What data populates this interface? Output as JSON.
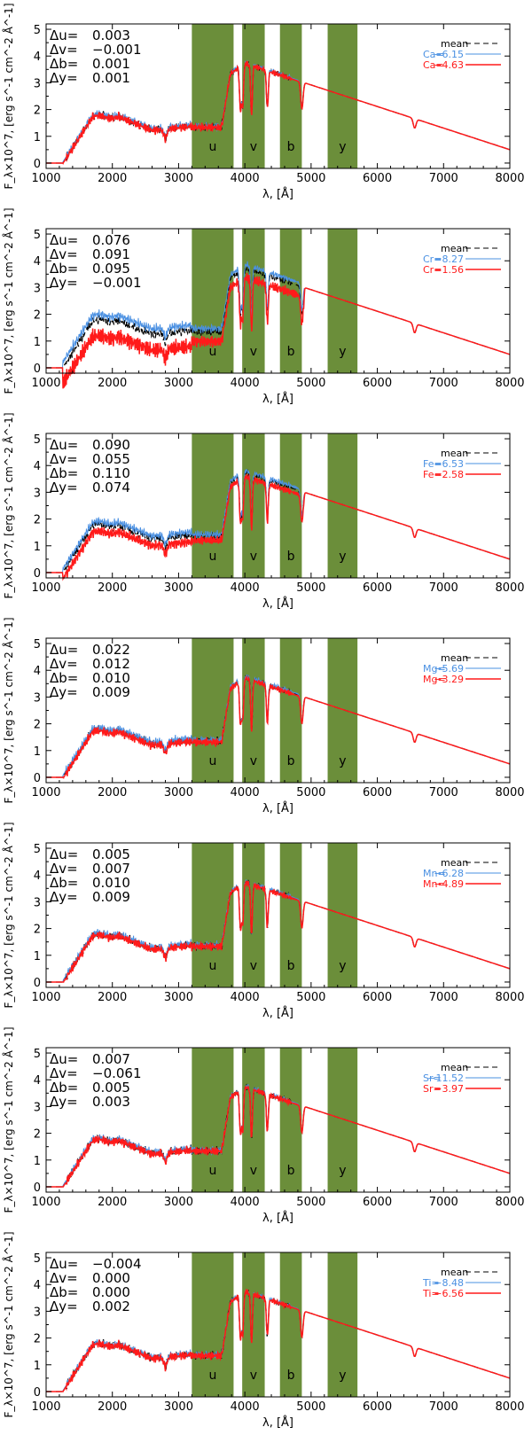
{
  "colors": {
    "band_fill": "#6b8e3a",
    "mean_line": "#000000",
    "low_line": "#4a90e2",
    "high_line": "#ff1a1a",
    "axis": "#000000"
  },
  "chart_data": [
    {
      "type": "line",
      "element": "Ca",
      "xlabel": "λ, [Å]",
      "ylabel": "F_λ×10^7, [erg s^-1 cm^-2 Å^-1]",
      "xlim": [
        1000,
        8000
      ],
      "ylim": [
        -0.2,
        5.2
      ],
      "x_ticks": [
        "1000",
        "2000",
        "3000",
        "4000",
        "5000",
        "6000",
        "7000",
        "8000"
      ],
      "y_ticks": [
        "0",
        "1",
        "2",
        "3",
        "4",
        "5"
      ],
      "bands": [
        {
          "label": "u",
          "from": 3200,
          "to": 3830
        },
        {
          "label": "v",
          "from": 3960,
          "to": 4300
        },
        {
          "label": "b",
          "from": 4530,
          "to": 4860
        },
        {
          "label": "y",
          "from": 5250,
          "to": 5700
        }
      ],
      "delta_labels": [
        "Δu=",
        "Δv=",
        "Δb=",
        "Δy="
      ],
      "delta_values": [
        "0.003",
        "−0.001",
        "0.001",
        "0.001"
      ],
      "legend": [
        {
          "name": "mean",
          "value": ""
        },
        {
          "name": "Ca=",
          "value": "−6.15"
        },
        {
          "name": "Ca=",
          "value": "−4.63"
        }
      ],
      "series": [
        {
          "name": "mean",
          "deviation": 0
        },
        {
          "name": "Ca= −6.15",
          "deviation": 0.03
        },
        {
          "name": "Ca= −4.63",
          "deviation": -0.03
        }
      ]
    },
    {
      "type": "line",
      "element": "Cr",
      "xlabel": "λ, [Å]",
      "ylabel": "F_λ×10^7, [erg s^-1 cm^-2 Å^-1]",
      "xlim": [
        1000,
        8000
      ],
      "ylim": [
        -0.2,
        5.2
      ],
      "x_ticks": [
        "1000",
        "2000",
        "3000",
        "4000",
        "5000",
        "6000",
        "7000",
        "8000"
      ],
      "y_ticks": [
        "0",
        "1",
        "2",
        "3",
        "4",
        "5"
      ],
      "bands": [
        {
          "label": "u",
          "from": 3200,
          "to": 3830
        },
        {
          "label": "v",
          "from": 3960,
          "to": 4300
        },
        {
          "label": "b",
          "from": 4530,
          "to": 4860
        },
        {
          "label": "y",
          "from": 5250,
          "to": 5700
        }
      ],
      "delta_labels": [
        "Δu=",
        "Δv=",
        "Δb=",
        "Δy="
      ],
      "delta_values": [
        "0.076",
        "0.091",
        "0.095",
        "−0.001"
      ],
      "legend": [
        {
          "name": "mean",
          "value": ""
        },
        {
          "name": "Cr=",
          "value": "−8.27"
        },
        {
          "name": "Cr=",
          "value": "−1.56"
        }
      ],
      "series": [
        {
          "name": "mean",
          "deviation": 0
        },
        {
          "name": "Cr= −8.27",
          "deviation": 0.2
        },
        {
          "name": "Cr= −1.56",
          "deviation": -0.6
        }
      ]
    },
    {
      "type": "line",
      "element": "Fe",
      "xlabel": "λ, [Å]",
      "ylabel": "F_λ×10^7, [erg s^-1 cm^-2 Å^-1]",
      "xlim": [
        1000,
        8000
      ],
      "ylim": [
        -0.2,
        5.2
      ],
      "x_ticks": [
        "1000",
        "2000",
        "3000",
        "4000",
        "5000",
        "6000",
        "7000",
        "8000"
      ],
      "y_ticks": [
        "0",
        "1",
        "2",
        "3",
        "4",
        "5"
      ],
      "bands": [
        {
          "label": "u",
          "from": 3200,
          "to": 3830
        },
        {
          "label": "v",
          "from": 3960,
          "to": 4300
        },
        {
          "label": "b",
          "from": 4530,
          "to": 4860
        },
        {
          "label": "y",
          "from": 5250,
          "to": 5700
        }
      ],
      "delta_labels": [
        "Δu=",
        "Δv=",
        "Δb=",
        "Δy="
      ],
      "delta_values": [
        "0.090",
        "0.055",
        "0.110",
        "0.074"
      ],
      "legend": [
        {
          "name": "mean",
          "value": ""
        },
        {
          "name": "Fe=",
          "value": "−6.53"
        },
        {
          "name": "Fe=",
          "value": "−2.58"
        }
      ],
      "series": [
        {
          "name": "mean",
          "deviation": 0
        },
        {
          "name": "Fe= −6.53",
          "deviation": 0.12
        },
        {
          "name": "Fe= −2.58",
          "deviation": -0.25
        }
      ]
    },
    {
      "type": "line",
      "element": "Mg",
      "xlabel": "λ, [Å]",
      "ylabel": "F_λ×10^7, [erg s^-1 cm^-2 Å^-1]",
      "xlim": [
        1000,
        8000
      ],
      "ylim": [
        -0.2,
        5.2
      ],
      "x_ticks": [
        "1000",
        "2000",
        "3000",
        "4000",
        "5000",
        "6000",
        "7000",
        "8000"
      ],
      "y_ticks": [
        "0",
        "1",
        "2",
        "3",
        "4",
        "5"
      ],
      "bands": [
        {
          "label": "u",
          "from": 3200,
          "to": 3830
        },
        {
          "label": "v",
          "from": 3960,
          "to": 4300
        },
        {
          "label": "b",
          "from": 4530,
          "to": 4860
        },
        {
          "label": "y",
          "from": 5250,
          "to": 5700
        }
      ],
      "delta_labels": [
        "Δu=",
        "Δv=",
        "Δb=",
        "Δy="
      ],
      "delta_values": [
        "0.022",
        "0.012",
        "0.010",
        "0.009"
      ],
      "legend": [
        {
          "name": "mean",
          "value": ""
        },
        {
          "name": "Mg=",
          "value": "−5.69"
        },
        {
          "name": "Mg=",
          "value": "−3.29"
        }
      ],
      "series": [
        {
          "name": "mean",
          "deviation": 0
        },
        {
          "name": "Mg= −5.69",
          "deviation": 0.06
        },
        {
          "name": "Mg= −3.29",
          "deviation": -0.06
        }
      ]
    },
    {
      "type": "line",
      "element": "Mn",
      "xlabel": "λ, [Å]",
      "ylabel": "F_λ×10^7, [erg s^-1 cm^-2 Å^-1]",
      "xlim": [
        1000,
        8000
      ],
      "ylim": [
        -0.2,
        5.2
      ],
      "x_ticks": [
        "1000",
        "2000",
        "3000",
        "4000",
        "5000",
        "6000",
        "7000",
        "8000"
      ],
      "y_ticks": [
        "0",
        "1",
        "2",
        "3",
        "4",
        "5"
      ],
      "bands": [
        {
          "label": "u",
          "from": 3200,
          "to": 3830
        },
        {
          "label": "v",
          "from": 3960,
          "to": 4300
        },
        {
          "label": "b",
          "from": 4530,
          "to": 4860
        },
        {
          "label": "y",
          "from": 5250,
          "to": 5700
        }
      ],
      "delta_labels": [
        "Δu=",
        "Δv=",
        "Δb=",
        "Δy="
      ],
      "delta_values": [
        "0.005",
        "0.007",
        "0.010",
        "0.009"
      ],
      "legend": [
        {
          "name": "mean",
          "value": ""
        },
        {
          "name": "Mn=",
          "value": "−6.28"
        },
        {
          "name": "Mn=",
          "value": "−4.89"
        }
      ],
      "series": [
        {
          "name": "mean",
          "deviation": 0
        },
        {
          "name": "Mn= −6.28",
          "deviation": 0.04
        },
        {
          "name": "Mn= −4.89",
          "deviation": -0.04
        }
      ]
    },
    {
      "type": "line",
      "element": "Sr",
      "xlabel": "λ, [Å]",
      "ylabel": "F_λ×10^7, [erg s^-1 cm^-2 Å^-1]",
      "xlim": [
        1000,
        8000
      ],
      "ylim": [
        -0.2,
        5.2
      ],
      "x_ticks": [
        "1000",
        "2000",
        "3000",
        "4000",
        "5000",
        "6000",
        "7000",
        "8000"
      ],
      "y_ticks": [
        "0",
        "1",
        "2",
        "3",
        "4",
        "5"
      ],
      "bands": [
        {
          "label": "u",
          "from": 3200,
          "to": 3830
        },
        {
          "label": "v",
          "from": 3960,
          "to": 4300
        },
        {
          "label": "b",
          "from": 4530,
          "to": 4860
        },
        {
          "label": "y",
          "from": 5250,
          "to": 5700
        }
      ],
      "delta_labels": [
        "Δu=",
        "Δv=",
        "Δb=",
        "Δy="
      ],
      "delta_values": [
        "0.007",
        "−0.061",
        "0.005",
        "0.003"
      ],
      "legend": [
        {
          "name": "mean",
          "value": ""
        },
        {
          "name": "Sr=",
          "value": "−11.52"
        },
        {
          "name": "Sr=",
          "value": "−3.97"
        }
      ],
      "series": [
        {
          "name": "mean",
          "deviation": 0
        },
        {
          "name": "Sr= −11.52",
          "deviation": 0.03
        },
        {
          "name": "Sr= −3.97",
          "deviation": -0.03
        }
      ]
    },
    {
      "type": "line",
      "element": "Ti",
      "xlabel": "λ, [Å]",
      "ylabel": "F_λ×10^7, [erg s^-1 cm^-2 Å^-1]",
      "xlim": [
        1000,
        8000
      ],
      "ylim": [
        -0.2,
        5.2
      ],
      "x_ticks": [
        "1000",
        "2000",
        "3000",
        "4000",
        "5000",
        "6000",
        "7000",
        "8000"
      ],
      "y_ticks": [
        "0",
        "1",
        "2",
        "3",
        "4",
        "5"
      ],
      "bands": [
        {
          "label": "u",
          "from": 3200,
          "to": 3830
        },
        {
          "label": "v",
          "from": 3960,
          "to": 4300
        },
        {
          "label": "b",
          "from": 4530,
          "to": 4860
        },
        {
          "label": "y",
          "from": 5250,
          "to": 5700
        }
      ],
      "delta_labels": [
        "Δu=",
        "Δv=",
        "Δb=",
        "Δy="
      ],
      "delta_values": [
        "−0.004",
        "0.000",
        "0.000",
        "0.002"
      ],
      "legend": [
        {
          "name": "mean",
          "value": ""
        },
        {
          "name": "Ti=",
          "value": "−8.48"
        },
        {
          "name": "Ti=",
          "value": "−6.56"
        }
      ],
      "series": [
        {
          "name": "mean",
          "deviation": 0
        },
        {
          "name": "Ti= −8.48",
          "deviation": 0.02
        },
        {
          "name": "Ti= −6.56",
          "deviation": -0.02
        }
      ]
    }
  ]
}
